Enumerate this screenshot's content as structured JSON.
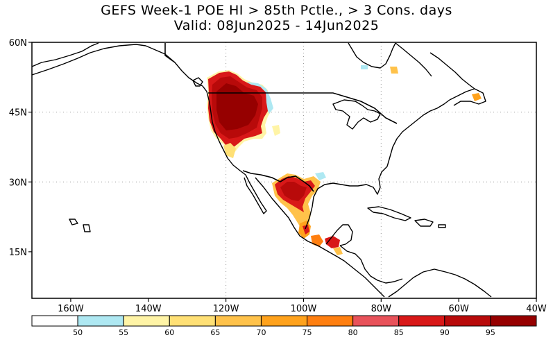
{
  "title": {
    "line1": "GEFS Week-1 POE HI > 85th Pctle., > 3 Cons. days",
    "line2": "Valid: 08Jun2025 - 14Jun2025"
  },
  "map": {
    "lon_range": [
      -170,
      -40
    ],
    "lat_range": [
      5,
      60
    ],
    "lat_ticks": [
      {
        "value": 60,
        "label": "60N"
      },
      {
        "value": 45,
        "label": "45N"
      },
      {
        "value": 30,
        "label": "30N"
      },
      {
        "value": 15,
        "label": "15N"
      }
    ],
    "lon_ticks": [
      {
        "value": -160,
        "label": "160W"
      },
      {
        "value": -140,
        "label": "140W"
      },
      {
        "value": -120,
        "label": "120W"
      },
      {
        "value": -100,
        "label": "100W"
      },
      {
        "value": -80,
        "label": "80W"
      },
      {
        "value": -60,
        "label": "60W"
      },
      {
        "value": -40,
        "label": "40W"
      }
    ],
    "gridlines": {
      "lons": [
        -120,
        -100,
        -80
      ],
      "lats": [
        45,
        30
      ]
    }
  },
  "colorbar": {
    "colors": [
      "#ffffff",
      "#aee8f2",
      "#fff4a6",
      "#ffe075",
      "#ffc24a",
      "#ffa21c",
      "#ff7f10",
      "#e8525a",
      "#d81818",
      "#b80a0a",
      "#960000"
    ],
    "labels": [
      "50",
      "55",
      "60",
      "65",
      "70",
      "75",
      "80",
      "85",
      "90",
      "95"
    ]
  },
  "colors": {
    "land_outline": "#000000",
    "grid": "#999999"
  }
}
